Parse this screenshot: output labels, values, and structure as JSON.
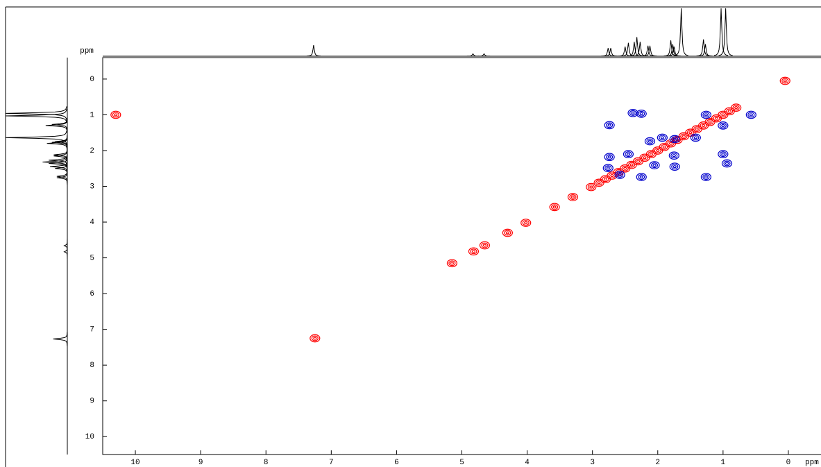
{
  "chart_data": {
    "type": "scatter",
    "x_label": "ppm",
    "y_label": "ppm",
    "xlim": [
      10.5,
      -0.5
    ],
    "xticks": [
      10,
      9,
      8,
      7,
      6,
      5,
      4,
      3,
      2,
      1,
      0
    ],
    "ylim": [
      -0.6,
      10.5
    ],
    "yticks": [
      0,
      1,
      2,
      3,
      4,
      5,
      6,
      7,
      8,
      9,
      10
    ],
    "series": [
      {
        "color": "#ff0000",
        "x": [
          10.3,
          0.05,
          7.25,
          4.82,
          4.65,
          5.15,
          4.3,
          4.02,
          3.58,
          3.3,
          3.02,
          2.9,
          2.8,
          2.7,
          2.6,
          2.5,
          2.4,
          2.3,
          2.2,
          2.1,
          2.0,
          1.9,
          1.8,
          1.7,
          1.6,
          1.5,
          1.4,
          1.3,
          1.2,
          1.1,
          1.0,
          0.9,
          0.8
        ],
        "values": [
          1.0,
          0.05,
          7.25,
          4.82,
          4.65,
          5.15,
          4.3,
          4.02,
          3.58,
          3.3,
          3.02,
          2.9,
          2.8,
          2.7,
          2.6,
          2.5,
          2.4,
          2.3,
          2.2,
          2.1,
          2.0,
          1.9,
          1.8,
          1.7,
          1.6,
          1.5,
          1.4,
          1.3,
          1.2,
          1.1,
          1.0,
          0.9,
          0.8
        ]
      },
      {
        "color": "#0000cc",
        "x": [
          2.38,
          2.25,
          1.26,
          1.0,
          2.74,
          2.12,
          2.74,
          2.76,
          2.45,
          2.05,
          1.75,
          1.74,
          2.25,
          1.26,
          0.94,
          1.0,
          1.74,
          1.42,
          0.57,
          1.93,
          2.58
        ],
        "values": [
          0.95,
          0.97,
          1.0,
          1.3,
          1.29,
          1.74,
          2.18,
          2.49,
          2.1,
          2.41,
          2.14,
          2.45,
          2.74,
          2.74,
          2.36,
          2.1,
          1.68,
          1.64,
          1.0,
          1.64,
          2.68
        ]
      }
    ],
    "projection": {
      "x": [
        7.27,
        4.83,
        4.66,
        2.76,
        2.72,
        2.5,
        2.45,
        2.36,
        2.32,
        2.27,
        2.15,
        2.12,
        1.8,
        1.77,
        1.75,
        1.64,
        1.3,
        1.27,
        1.03,
        0.96
      ],
      "heights": [
        0.23,
        0.05,
        0.05,
        0.17,
        0.17,
        0.2,
        0.28,
        0.3,
        0.4,
        0.3,
        0.22,
        0.22,
        0.33,
        0.25,
        0.2,
        1.0,
        0.35,
        0.25,
        1.0,
        1.0
      ]
    }
  }
}
